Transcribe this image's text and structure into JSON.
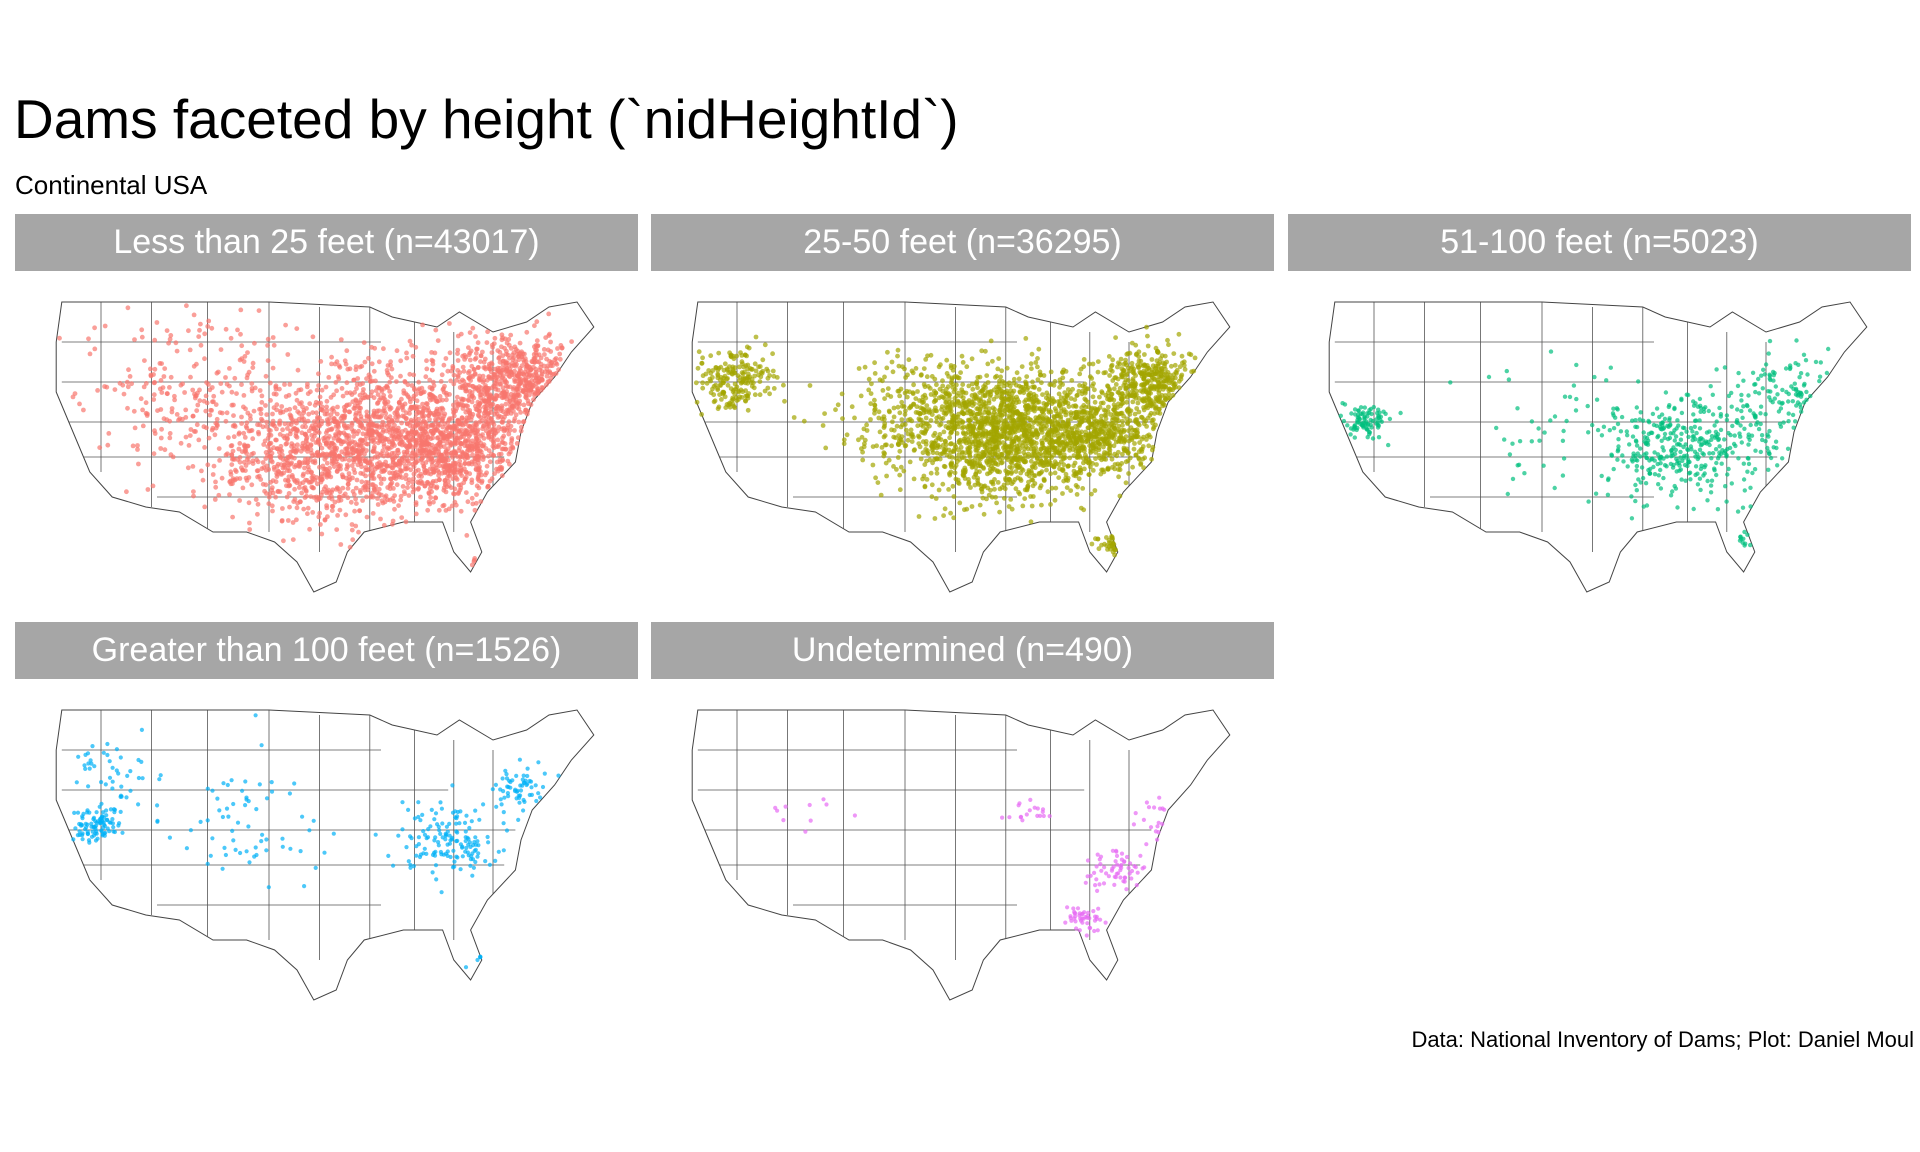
{
  "header": {
    "title": "Dams faceted by height (`nidHeightId`)",
    "subtitle": "Continental USA"
  },
  "caption": "Data: National Inventory of Dams; Plot: Daniel Moul",
  "facets": [
    {
      "label": "Less than 25 feet (n=43017)",
      "color": "#F8766D",
      "n": 43017
    },
    {
      "label": "25-50 feet (n=36295)",
      "color": "#A3A500",
      "n": 36295
    },
    {
      "label": "51-100 feet (n=5023)",
      "color": "#00BF7D",
      "n": 5023
    },
    {
      "label": "Greater than 100 feet (n=1526)",
      "color": "#00B0F6",
      "n": 1526
    },
    {
      "label": "Undetermined (n=490)",
      "color": "#E76BF3",
      "n": 490
    }
  ],
  "chart_data": {
    "type": "scatter",
    "map": "continental USA state boundaries",
    "facet_variable": "nidHeightId",
    "series": [
      {
        "name": "Less than 25 feet",
        "count": 43017,
        "color": "#F8766D"
      },
      {
        "name": "25-50 feet",
        "count": 36295,
        "color": "#A3A500"
      },
      {
        "name": "51-100 feet",
        "count": 5023,
        "color": "#00BF7D"
      },
      {
        "name": "Greater than 100 feet",
        "count": 1526,
        "color": "#00B0F6"
      },
      {
        "name": "Undetermined",
        "count": 490,
        "color": "#E76BF3"
      }
    ],
    "grid": false,
    "legend": "none"
  }
}
